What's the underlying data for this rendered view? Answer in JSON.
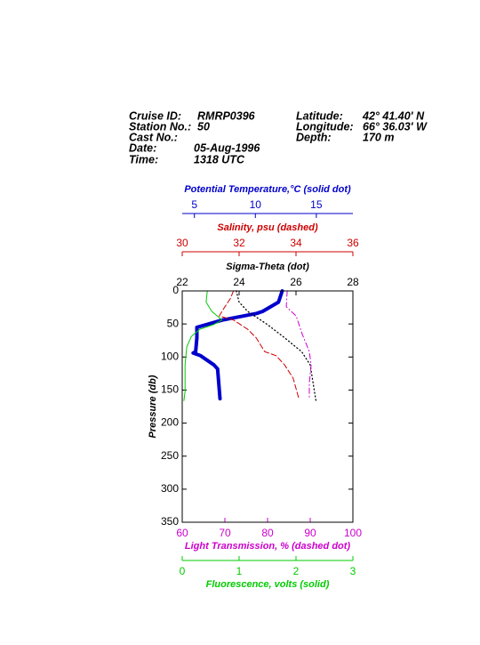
{
  "header": {
    "left": [
      {
        "label": "Cruise ID:",
        "value": "RMRP0396"
      },
      {
        "label": "Station No.:",
        "value": "50"
      },
      {
        "label": "Cast No.:"
      },
      {
        "label": "Date:",
        "value": "05-Aug-1996"
      },
      {
        "label": "Time:",
        "value": "1318 UTC"
      }
    ],
    "right": [
      {
        "label": "Latitude:",
        "value": "42° 41.40' N"
      },
      {
        "label": "Longitude:",
        "value": "66° 36.03' W"
      },
      {
        "label": "Depth:",
        "value": "170 m"
      }
    ]
  },
  "chart_data": {
    "type": "profile",
    "y_label": "Pressure (db)",
    "ylim": [
      0,
      350
    ],
    "yticks": [
      0,
      50,
      100,
      150,
      200,
      250,
      300,
      350
    ],
    "y_inverted": true,
    "series": [
      {
        "name": "Potential Temperature,°C (solid dot)",
        "color": "#0000cc",
        "style": "solid-dot",
        "xlim": [
          4,
          18
        ],
        "xticks": [
          5,
          10,
          15
        ],
        "pressure": [
          0,
          17,
          31,
          34,
          44,
          55,
          71,
          92,
          94,
          98,
          112,
          118,
          163
        ],
        "values": [
          12.2,
          11.9,
          10.6,
          10.1,
          7.3,
          5.2,
          5.2,
          5.1,
          4.9,
          5.5,
          6.6,
          6.9,
          7.1
        ]
      },
      {
        "name": "Salinity, psu  (dashed)",
        "color": "#cc0000",
        "style": "dashed",
        "xlim": [
          30,
          36
        ],
        "xticks": [
          30,
          32,
          34,
          36
        ],
        "pressure": [
          0,
          11,
          24,
          38,
          44,
          58,
          71,
          92,
          98,
          112,
          132,
          163
        ],
        "values": [
          31.8,
          31.7,
          31.5,
          31.3,
          31.8,
          32.3,
          32.6,
          32.9,
          33.3,
          33.6,
          33.9,
          34.1
        ]
      },
      {
        "name": "Sigma-Theta (dot)",
        "color": "#000000",
        "style": "dot",
        "xlim": [
          22,
          28
        ],
        "xticks": [
          22,
          24,
          26,
          28
        ],
        "pressure": [
          0,
          17,
          31,
          51,
          71,
          92,
          112,
          139,
          166
        ],
        "values": [
          23.9,
          24.0,
          24.3,
          25.0,
          25.6,
          26.2,
          26.5,
          26.6,
          26.7
        ]
      },
      {
        "name": "Light Transmission, % (dashed dot)",
        "color": "#cc00cc",
        "style": "dash-dot",
        "xlim": [
          60,
          100
        ],
        "xticks": [
          60,
          70,
          80,
          90,
          100
        ],
        "pressure": [
          0,
          24,
          38,
          65,
          92,
          112,
          139,
          163
        ],
        "values": [
          84.6,
          84.4,
          86.7,
          88.1,
          89.8,
          90.2,
          89.8,
          89.8
        ]
      },
      {
        "name": "Fluorescence, volts (solid)",
        "color": "#00cc00",
        "style": "solid",
        "xlim": [
          0,
          3
        ],
        "xticks": [
          0,
          1,
          2,
          3
        ],
        "pressure": [
          0,
          17,
          31,
          44,
          51,
          58,
          69,
          85,
          112,
          152,
          166
        ],
        "values": [
          0.44,
          0.42,
          0.52,
          0.7,
          0.55,
          0.31,
          0.16,
          0.08,
          0.05,
          0.05,
          0.03
        ]
      }
    ]
  }
}
